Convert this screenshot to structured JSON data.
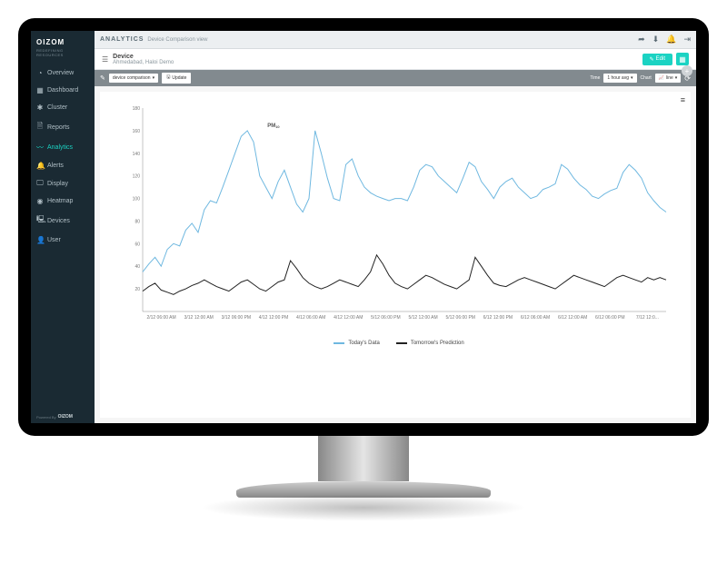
{
  "brand": {
    "name": "OIZOM",
    "tagline": "REDEFINING RESOURCES",
    "powered_by": "Powered By",
    "powered_brand": "OIZOM"
  },
  "sidebar": {
    "items": [
      {
        "icon": "◔",
        "label": "Overview"
      },
      {
        "icon": "▦",
        "label": "Dashboard"
      },
      {
        "icon": "✱",
        "label": "Cluster"
      },
      {
        "icon": "🗎",
        "label": "Reports"
      },
      {
        "icon": "〰",
        "label": "Analytics",
        "active": true
      },
      {
        "icon": "🔔",
        "label": "Alerts"
      },
      {
        "icon": "🖵",
        "label": "Display"
      },
      {
        "icon": "◉",
        "label": "Heatmap"
      },
      {
        "icon": "🖳",
        "label": "Devices"
      },
      {
        "icon": "👤",
        "label": "User"
      }
    ]
  },
  "topbar": {
    "title": "ANALYTICS",
    "subtitle": "Device Comparison view",
    "actions": [
      "share",
      "download",
      "bell",
      "exit"
    ]
  },
  "device": {
    "label": "Device",
    "location": "Ahmedabad, Haloi Demo",
    "edit_label": "Edit"
  },
  "toolbar": {
    "selector_label": "device comparison",
    "update_label": "Update",
    "time_label": "Time",
    "time_value": "1 hour avg",
    "chart_label": "Chart",
    "chart_value": "line"
  },
  "chart": {
    "type": "line",
    "pollutant_label": "PM",
    "pollutant_sub": "10",
    "ylim": [
      0,
      180
    ],
    "yticks": [
      20,
      40,
      60,
      80,
      100,
      120,
      140,
      160,
      180
    ],
    "xticks": [
      "2/12 06:00 AM",
      "3/12 12:00 AM",
      "3/12 06:00 PM",
      "4/12 12:00 PM",
      "4/12 06:00 AM",
      "4/12 12:00 AM",
      "5/12 06:00 PM",
      "5/12 12:00 AM",
      "5/12 06:00 PM",
      "6/12 12:00 PM",
      "6/12 06:00 AM",
      "6/12 12:00 AM",
      "6/12 06:00 PM",
      "7/12 12:0..."
    ],
    "series": {
      "today": {
        "label": "Today's Data",
        "color": "#6fb8e0",
        "values": [
          35,
          42,
          48,
          40,
          55,
          60,
          58,
          72,
          78,
          70,
          90,
          98,
          96,
          110,
          125,
          140,
          155,
          160,
          150,
          120,
          110,
          100,
          115,
          125,
          110,
          95,
          88,
          100,
          160,
          140,
          118,
          100,
          98,
          130,
          135,
          120,
          110,
          105,
          102,
          100,
          98,
          100,
          100,
          98,
          110,
          125,
          130,
          128,
          120,
          115,
          110,
          105,
          118,
          132,
          128,
          115,
          108,
          100,
          110,
          115,
          118,
          110,
          105,
          100,
          102,
          108,
          110,
          113,
          130,
          126,
          118,
          112,
          108,
          102,
          100,
          104,
          107,
          109,
          123,
          130,
          125,
          118,
          105,
          98,
          92,
          88
        ]
      },
      "prediction": {
        "label": "Tomorrow's Prediction",
        "color": "#222222",
        "values": [
          18,
          22,
          25,
          19,
          17,
          15,
          18,
          20,
          23,
          25,
          28,
          25,
          22,
          20,
          18,
          22,
          26,
          28,
          24,
          20,
          18,
          22,
          26,
          28,
          45,
          38,
          30,
          25,
          22,
          20,
          22,
          25,
          28,
          26,
          24,
          22,
          28,
          35,
          50,
          42,
          32,
          25,
          22,
          20,
          24,
          28,
          32,
          30,
          27,
          24,
          22,
          20,
          24,
          28,
          48,
          40,
          32,
          25,
          23,
          22,
          25,
          28,
          30,
          28,
          26,
          24,
          22,
          20,
          24,
          28,
          32,
          30,
          28,
          26,
          24,
          22,
          26,
          30,
          32,
          30,
          28,
          26,
          30,
          28,
          30,
          28
        ]
      }
    },
    "legend": [
      {
        "label": "Today's Data",
        "color": "#6fb8e0"
      },
      {
        "label": "Tomorrow's Prediction",
        "color": "#222222"
      }
    ],
    "background_color": "#ffffff",
    "axis_color": "#888888",
    "tick_font_size": 5
  },
  "colors": {
    "sidebar_bg": "#1a2a33",
    "accent": "#1bd3c3",
    "toolbar_bg": "#828a8f"
  }
}
